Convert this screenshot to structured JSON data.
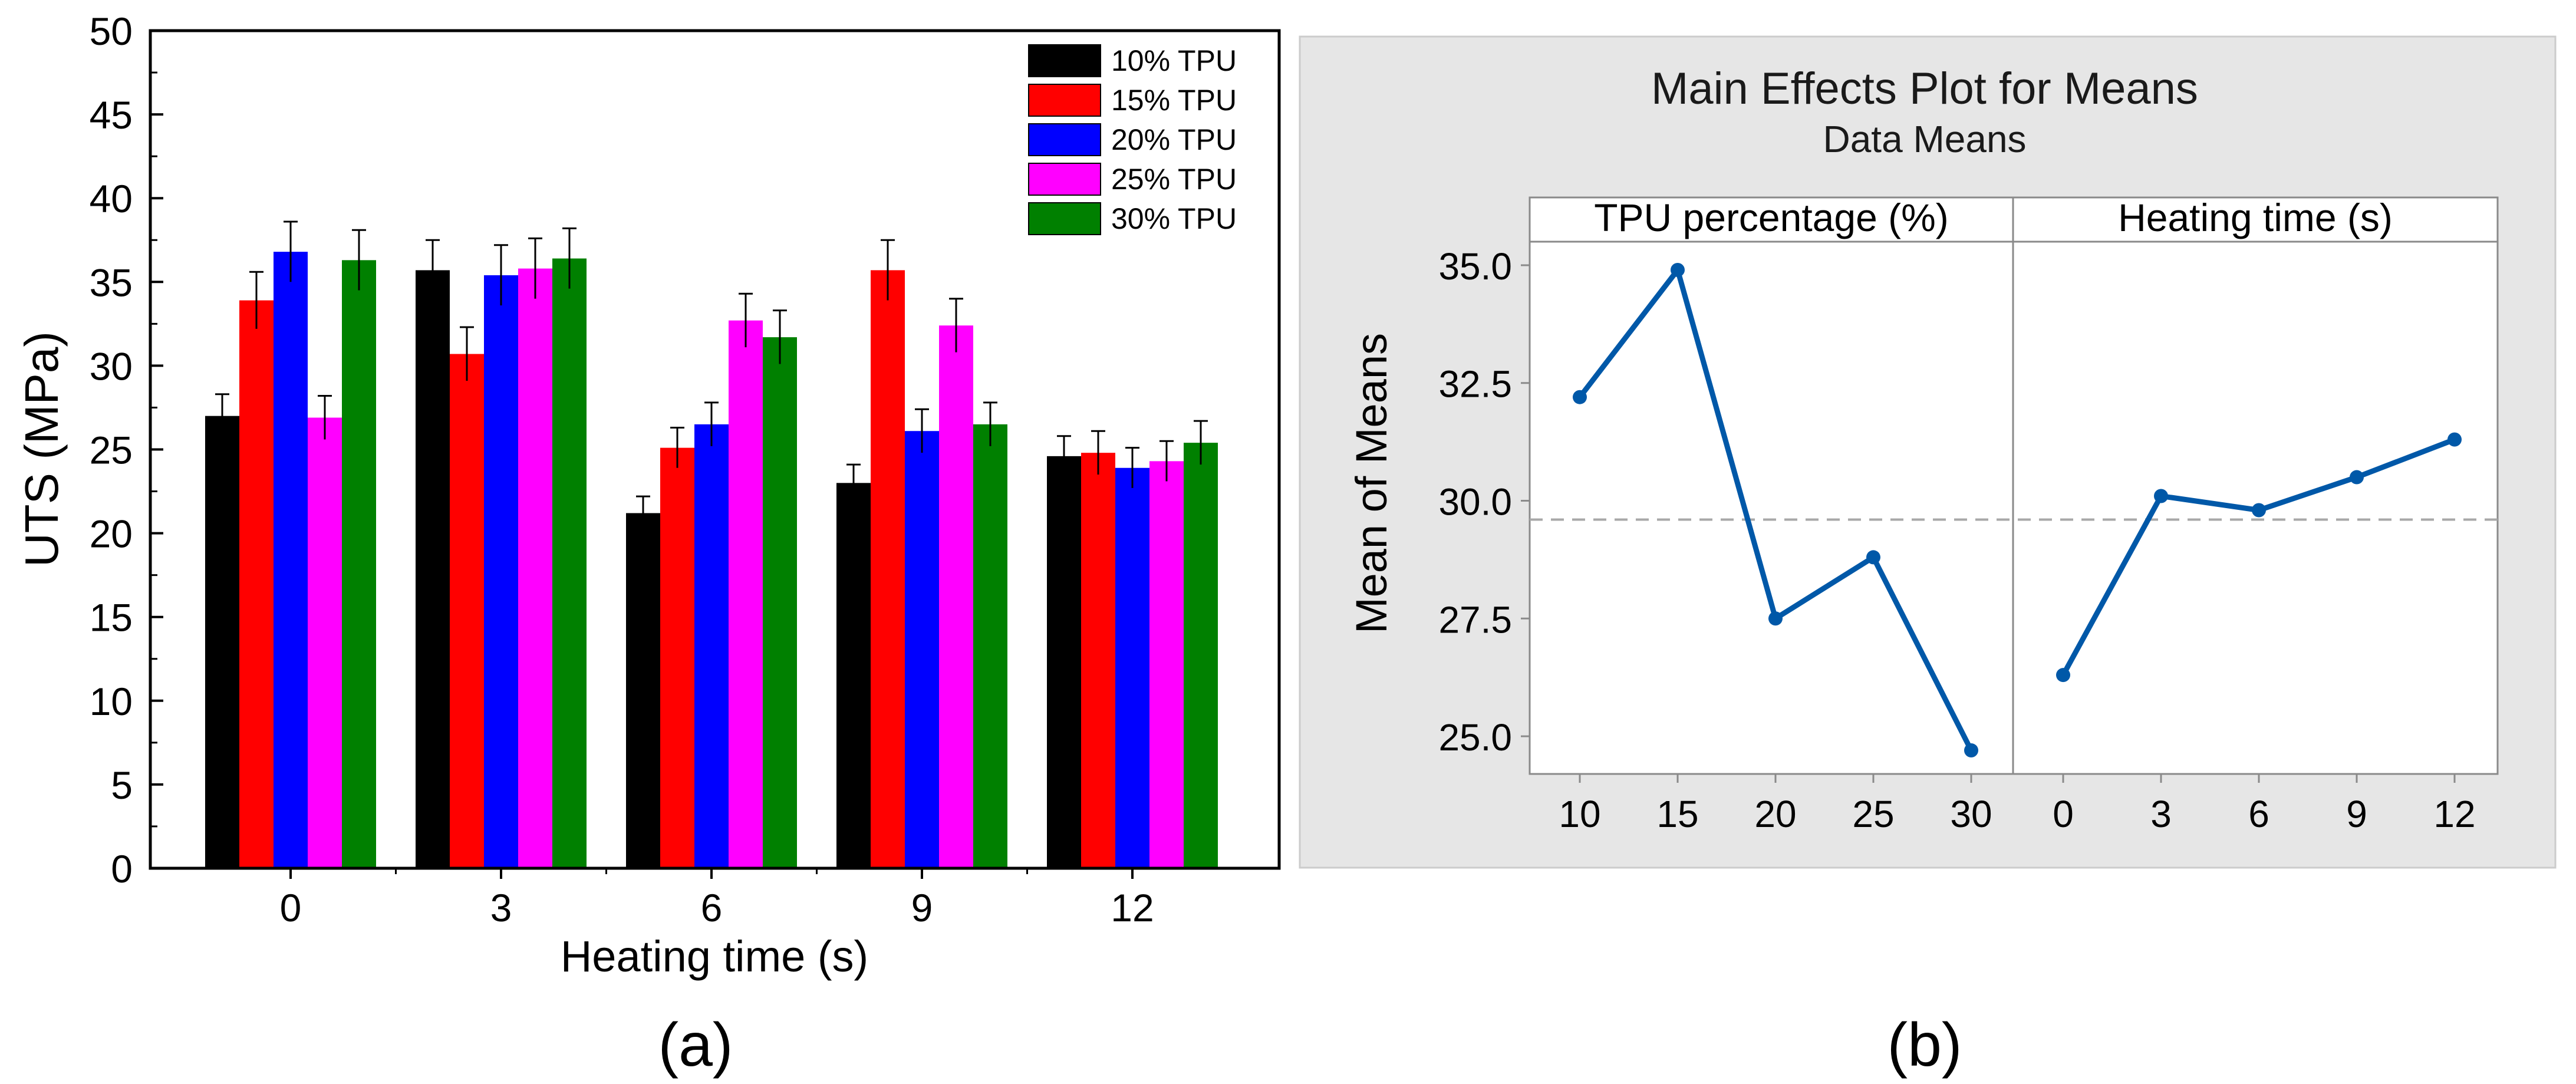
{
  "chart_data": [
    {
      "type": "bar",
      "panel_label": "(a)",
      "title": "",
      "xlabel": "Heating time (s)",
      "ylabel": "UTS (MPa)",
      "ylim": [
        0,
        50
      ],
      "yticks": [
        0,
        5,
        10,
        15,
        20,
        25,
        30,
        35,
        40,
        45,
        50
      ],
      "categories": [
        "0",
        "3",
        "6",
        "9",
        "12"
      ],
      "series": [
        {
          "name": "10% TPU",
          "color": "#000000",
          "values": [
            27.0,
            35.7,
            21.2,
            23.0,
            24.6
          ],
          "errors": [
            1.3,
            1.8,
            1.0,
            1.1,
            1.2
          ]
        },
        {
          "name": "15% TPU",
          "color": "#ff0000",
          "values": [
            33.9,
            30.7,
            25.1,
            35.7,
            24.8
          ],
          "errors": [
            1.7,
            1.6,
            1.2,
            1.8,
            1.3
          ]
        },
        {
          "name": "20% TPU",
          "color": "#0000ff",
          "values": [
            36.8,
            35.4,
            26.5,
            26.1,
            23.9
          ],
          "errors": [
            1.8,
            1.8,
            1.3,
            1.3,
            1.2
          ]
        },
        {
          "name": "25% TPU",
          "color": "#ff00ff",
          "values": [
            26.9,
            35.8,
            32.7,
            32.4,
            24.3
          ],
          "errors": [
            1.3,
            1.8,
            1.6,
            1.6,
            1.2
          ]
        },
        {
          "name": "30% TPU",
          "color": "#008000",
          "values": [
            36.3,
            36.4,
            31.7,
            26.5,
            25.4
          ],
          "errors": [
            1.8,
            1.8,
            1.6,
            1.3,
            1.3
          ]
        }
      ],
      "legend_position": "top-right",
      "grid": false
    },
    {
      "type": "line",
      "panel_label": "(b)",
      "title": "Main Effects Plot for Means",
      "subtitle": "Data Means",
      "ylabel": "Mean of Means",
      "ylim": [
        24.2,
        35.5
      ],
      "yticks": [
        "25.0",
        "27.5",
        "30.0",
        "32.5",
        "35.0"
      ],
      "reference_line": 29.6,
      "color": "#0058a8",
      "background": "#e6e6e6",
      "panels": [
        {
          "label": "TPU percentage (%)",
          "x": [
            "10",
            "15",
            "20",
            "25",
            "30"
          ],
          "values": [
            32.2,
            34.9,
            27.5,
            28.8,
            24.7
          ]
        },
        {
          "label": "Heating time (s)",
          "x": [
            "0",
            "3",
            "6",
            "9",
            "12"
          ],
          "values": [
            26.3,
            30.1,
            29.8,
            30.5,
            31.3
          ]
        }
      ]
    }
  ]
}
